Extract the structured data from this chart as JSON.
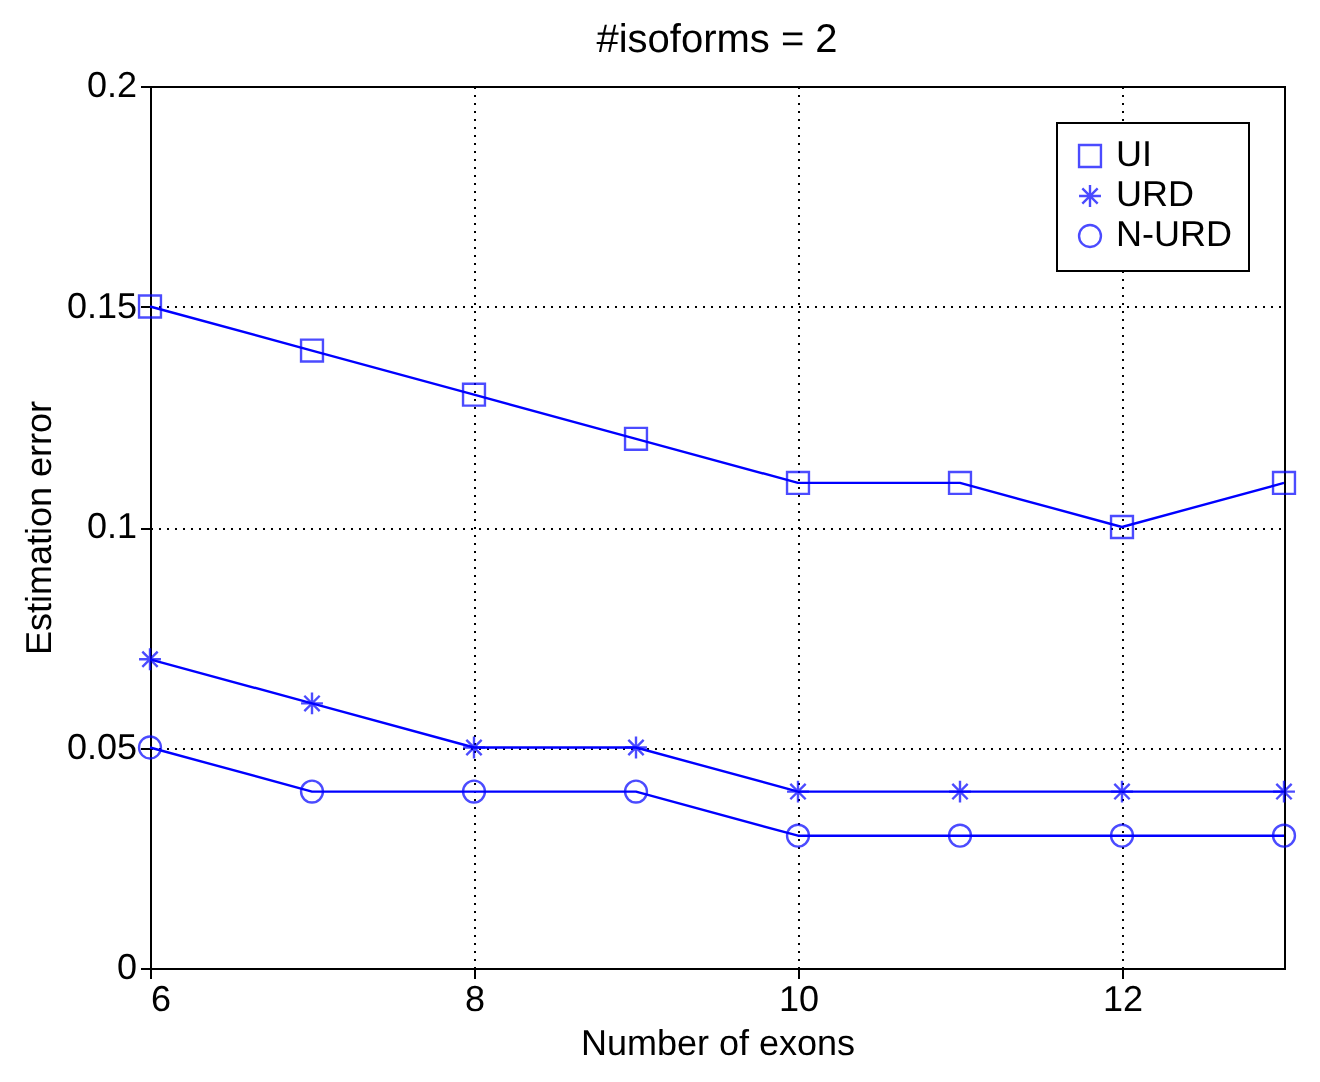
{
  "chart_data": {
    "type": "line",
    "title": "#isoforms = 2",
    "xlabel": "Number of exons",
    "ylabel": "Estimation error",
    "x": [
      6,
      7,
      8,
      9,
      10,
      11,
      12,
      13
    ],
    "series": [
      {
        "name": "UI",
        "color": "#0000ff",
        "marker": "square",
        "values": [
          0.15,
          0.14,
          0.13,
          0.12,
          0.11,
          0.11,
          0.1,
          0.11
        ]
      },
      {
        "name": "URD",
        "color": "#0000ff",
        "marker": "cross",
        "values": [
          0.07,
          0.06,
          0.05,
          0.05,
          0.04,
          0.04,
          0.04,
          0.04
        ]
      },
      {
        "name": "N-URD",
        "color": "#0000ff",
        "marker": "circle",
        "values": [
          0.05,
          0.04,
          0.04,
          0.04,
          0.03,
          0.03,
          0.03,
          0.03
        ]
      }
    ],
    "xlim": [
      6,
      13
    ],
    "xticks": [
      6,
      8,
      10,
      12
    ],
    "ylim": [
      0,
      0.2
    ],
    "yticks": [
      0,
      0.05,
      0.1,
      0.15,
      0.2
    ],
    "grid": true,
    "line_style": "solid",
    "legend": "top right"
  }
}
